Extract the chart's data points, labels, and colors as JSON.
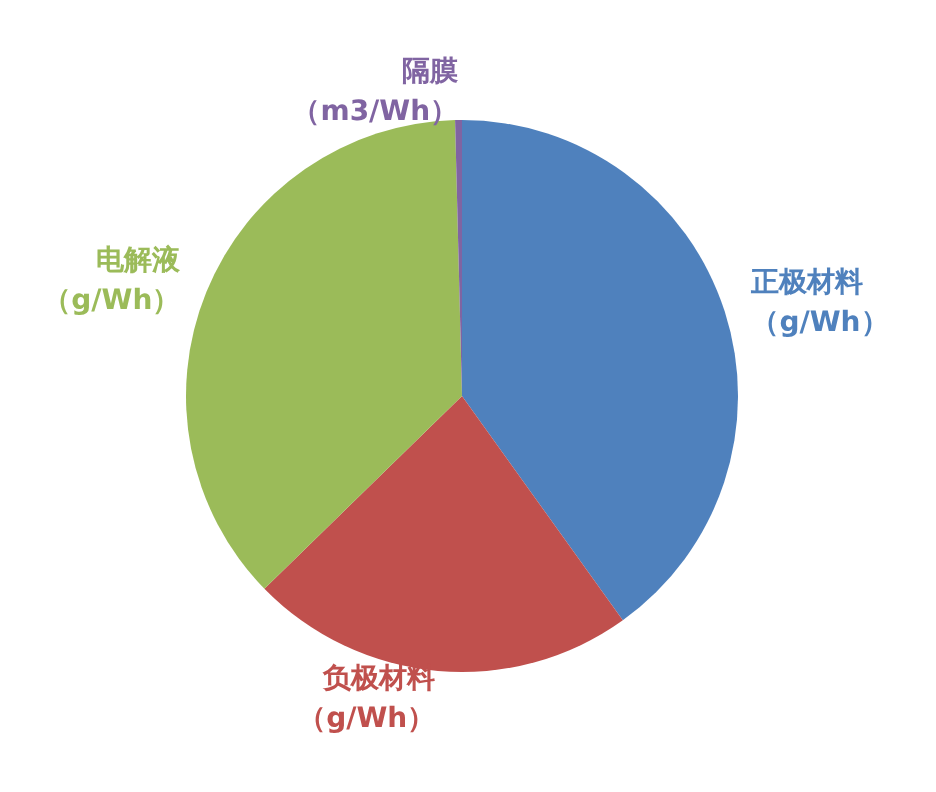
{
  "chart_data": {
    "type": "pie",
    "categories": [
      "正极材料（g/Wh）",
      "负极材料（g/Wh）",
      "电解液（g/Wh）",
      "隔膜（m3/Wh）"
    ],
    "values": [
      40.1,
      22.6,
      36.9,
      0.4
    ],
    "colors": [
      "#4f81bd",
      "#c0504d",
      "#9bbb59",
      "#8064a2"
    ],
    "legend": false
  }
}
